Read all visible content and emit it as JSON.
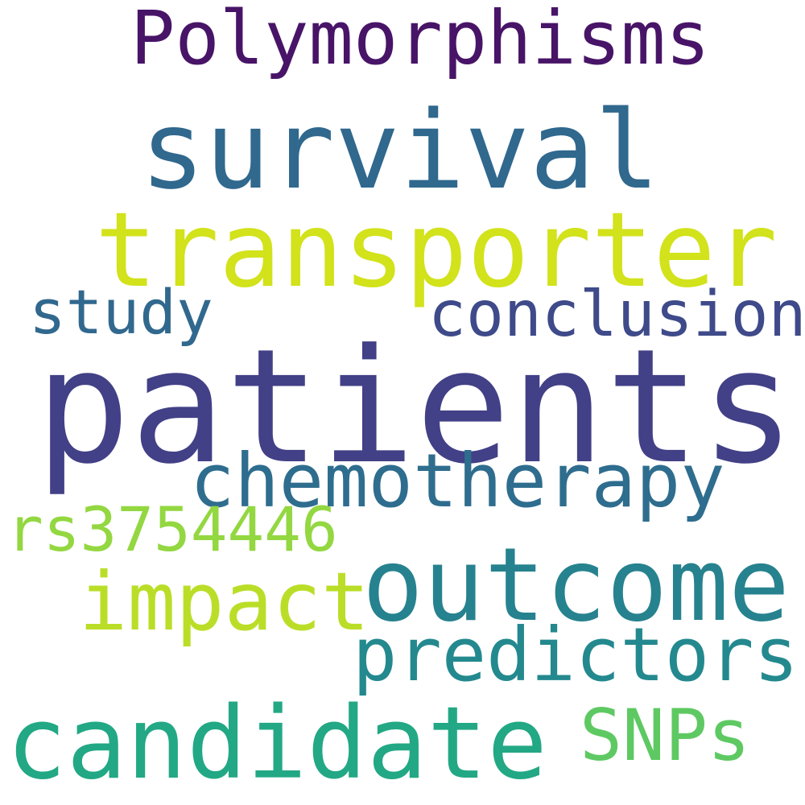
{
  "words": [
    {
      "key": "polymorphisms",
      "text": "Polymorphisms",
      "color": "#481467"
    },
    {
      "key": "survival",
      "text": "survival",
      "color": "#30688e"
    },
    {
      "key": "transporter",
      "text": "transporter",
      "color": "#d2e21b"
    },
    {
      "key": "study",
      "text": "study",
      "color": "#31688e"
    },
    {
      "key": "conclusion",
      "text": "conclusion",
      "color": "#3e4a89"
    },
    {
      "key": "patients",
      "text": "patients",
      "color": "#424086"
    },
    {
      "key": "chemotherapy",
      "text": "chemotherapy",
      "color": "#2e6d8e"
    },
    {
      "key": "rs3754446",
      "text": "rs3754446",
      "color": "#93d741"
    },
    {
      "key": "outcome",
      "text": "outcome",
      "color": "#26828e"
    },
    {
      "key": "impact",
      "text": "impact",
      "color": "#bade28"
    },
    {
      "key": "predictors",
      "text": "predictors",
      "color": "#23898e"
    },
    {
      "key": "candidate",
      "text": "candidate",
      "color": "#22a884"
    },
    {
      "key": "snps",
      "text": "SNPs",
      "color": "#5ec962"
    }
  ]
}
